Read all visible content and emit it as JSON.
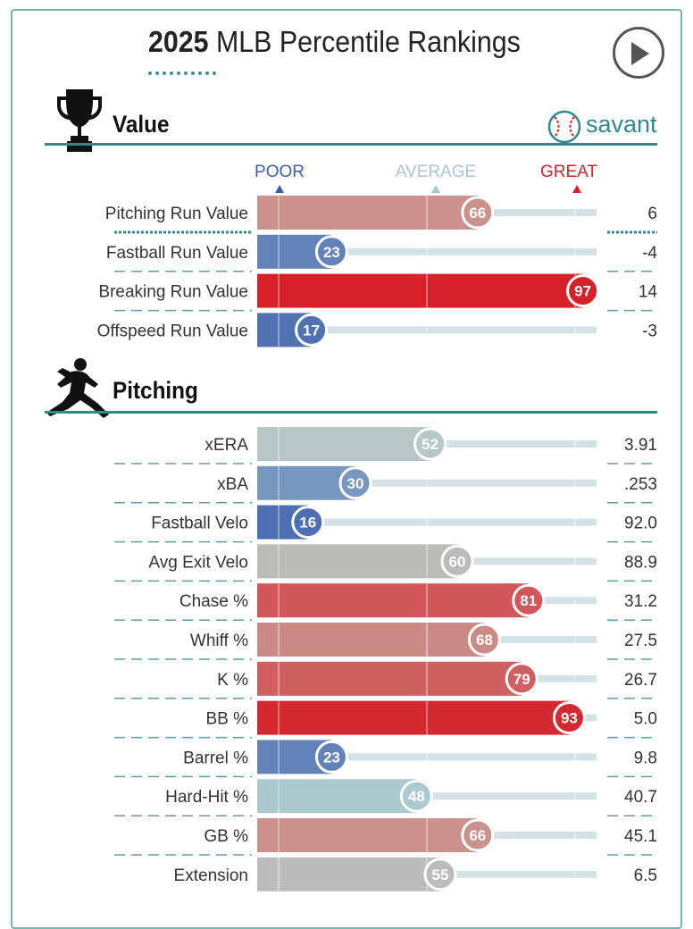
{
  "header": {
    "year": "2025",
    "title_rest": "MLB Percentile Rankings"
  },
  "icons": {
    "play": "play-icon",
    "trophy": "trophy-icon",
    "pitcher": "pitcher-silhouette-icon",
    "savant_logo": "baseball-icon"
  },
  "savant_label": "savant",
  "scale_labels": {
    "poor": "POOR",
    "average": "AVERAGE",
    "great": "GREAT"
  },
  "colors": {
    "teal": "#2f8a8e",
    "poor": "#3f5fae",
    "great": "#d8222a",
    "neutral": "#b2b2b2"
  },
  "chart_data": {
    "type": "bar",
    "orientation": "horizontal",
    "xlim": [
      0,
      100
    ],
    "sections": [
      {
        "title": "Value",
        "rows": [
          {
            "label": "Pitching Run Value",
            "percentile": 66,
            "value": "6",
            "highlight": true
          },
          {
            "label": "Fastball Run Value",
            "percentile": 23,
            "value": "-4"
          },
          {
            "label": "Breaking Run Value",
            "percentile": 97,
            "value": "14"
          },
          {
            "label": "Offspeed Run Value",
            "percentile": 17,
            "value": "-3"
          }
        ]
      },
      {
        "title": "Pitching",
        "rows": [
          {
            "label": "xERA",
            "percentile": 52,
            "value": "3.91"
          },
          {
            "label": "xBA",
            "percentile": 30,
            "value": ".253"
          },
          {
            "label": "Fastball Velo",
            "percentile": 16,
            "value": "92.0"
          },
          {
            "label": "Avg Exit Velo",
            "percentile": 60,
            "value": "88.9",
            "gray": true
          },
          {
            "label": "Chase %",
            "percentile": 81,
            "value": "31.2"
          },
          {
            "label": "Whiff %",
            "percentile": 68,
            "value": "27.5"
          },
          {
            "label": "K %",
            "percentile": 79,
            "value": "26.7"
          },
          {
            "label": "BB %",
            "percentile": 93,
            "value": "5.0"
          },
          {
            "label": "Barrel %",
            "percentile": 23,
            "value": "9.8"
          },
          {
            "label": "Hard-Hit %",
            "percentile": 48,
            "value": "40.7"
          },
          {
            "label": "GB %",
            "percentile": 66,
            "value": "45.1"
          },
          {
            "label": "Extension",
            "percentile": 55,
            "value": "6.5"
          }
        ]
      }
    ]
  }
}
